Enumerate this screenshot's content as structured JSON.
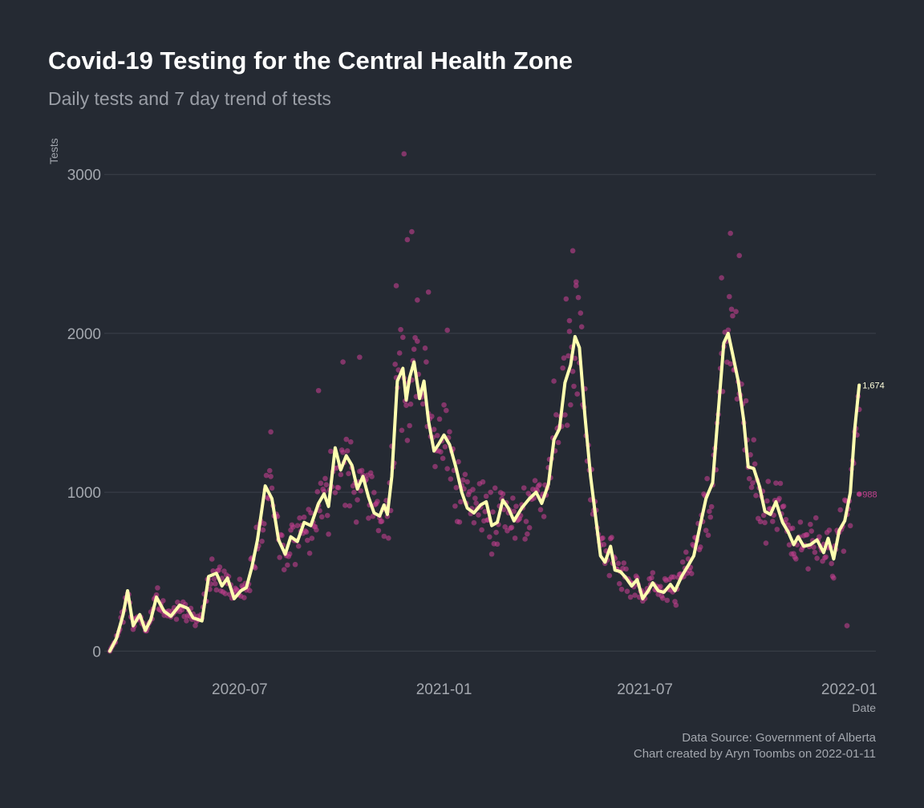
{
  "chart_data": {
    "type": "scatter",
    "title": "Covid-19 Testing for the Central Health Zone",
    "subtitle": "Daily tests and 7 day trend of tests",
    "xlabel": "Date",
    "ylabel": "Tests",
    "x_ticks": [
      "2020-07",
      "2021-01",
      "2021-07",
      "2022-01"
    ],
    "y_ticks": [
      "0",
      "1000",
      "2000",
      "3000"
    ],
    "xlim": [
      "2020-03-01",
      "2022-01-25"
    ],
    "ylim": [
      -150,
      3150
    ],
    "grid": "horizontal",
    "x_range": [
      "2020-03-06",
      "2022-01-10"
    ],
    "colors": {
      "points": "#c2408e",
      "trend": "#ffffb0",
      "background": "#252a33",
      "grid": "#3c414b"
    },
    "series": [
      {
        "kind": "trend_line",
        "points": [
          [
            "2020-03-06",
            0
          ],
          [
            "2020-03-12",
            80
          ],
          [
            "2020-03-18",
            230
          ],
          [
            "2020-03-22",
            380
          ],
          [
            "2020-03-27",
            160
          ],
          [
            "2020-04-02",
            230
          ],
          [
            "2020-04-07",
            130
          ],
          [
            "2020-04-12",
            200
          ],
          [
            "2020-04-17",
            340
          ],
          [
            "2020-04-24",
            250
          ],
          [
            "2020-04-30",
            220
          ],
          [
            "2020-05-08",
            290
          ],
          [
            "2020-05-15",
            270
          ],
          [
            "2020-05-20",
            210
          ],
          [
            "2020-05-28",
            190
          ],
          [
            "2020-06-03",
            470
          ],
          [
            "2020-06-10",
            490
          ],
          [
            "2020-06-15",
            410
          ],
          [
            "2020-06-20",
            460
          ],
          [
            "2020-06-26",
            330
          ],
          [
            "2020-07-02",
            380
          ],
          [
            "2020-07-07",
            400
          ],
          [
            "2020-07-12",
            530
          ],
          [
            "2020-07-17",
            700
          ],
          [
            "2020-07-24",
            1040
          ],
          [
            "2020-07-30",
            960
          ],
          [
            "2020-08-05",
            700
          ],
          [
            "2020-08-11",
            610
          ],
          [
            "2020-08-16",
            720
          ],
          [
            "2020-08-22",
            690
          ],
          [
            "2020-08-28",
            810
          ],
          [
            "2020-09-03",
            790
          ],
          [
            "2020-09-10",
            930
          ],
          [
            "2020-09-15",
            990
          ],
          [
            "2020-09-19",
            910
          ],
          [
            "2020-09-25",
            1280
          ],
          [
            "2020-09-30",
            1140
          ],
          [
            "2020-10-05",
            1230
          ],
          [
            "2020-10-10",
            1170
          ],
          [
            "2020-10-15",
            1020
          ],
          [
            "2020-10-20",
            1100
          ],
          [
            "2020-10-25",
            970
          ],
          [
            "2020-10-30",
            870
          ],
          [
            "2020-11-04",
            850
          ],
          [
            "2020-11-08",
            920
          ],
          [
            "2020-11-11",
            860
          ],
          [
            "2020-11-15",
            1100
          ],
          [
            "2020-11-20",
            1700
          ],
          [
            "2020-11-25",
            1780
          ],
          [
            "2020-11-28",
            1580
          ],
          [
            "2020-12-01",
            1720
          ],
          [
            "2020-12-05",
            1820
          ],
          [
            "2020-12-10",
            1590
          ],
          [
            "2020-12-14",
            1700
          ],
          [
            "2020-12-18",
            1450
          ],
          [
            "2020-12-23",
            1260
          ],
          [
            "2020-12-27",
            1300
          ],
          [
            "2021-01-01",
            1360
          ],
          [
            "2021-01-06",
            1300
          ],
          [
            "2021-01-12",
            1150
          ],
          [
            "2021-01-17",
            1000
          ],
          [
            "2021-01-22",
            900
          ],
          [
            "2021-01-28",
            870
          ],
          [
            "2021-02-03",
            920
          ],
          [
            "2021-02-08",
            940
          ],
          [
            "2021-02-13",
            790
          ],
          [
            "2021-02-18",
            810
          ],
          [
            "2021-02-23",
            950
          ],
          [
            "2021-02-28",
            900
          ],
          [
            "2021-03-05",
            820
          ],
          [
            "2021-03-12",
            900
          ],
          [
            "2021-03-19",
            960
          ],
          [
            "2021-03-25",
            1000
          ],
          [
            "2021-03-30",
            930
          ],
          [
            "2021-04-05",
            1050
          ],
          [
            "2021-04-10",
            1330
          ],
          [
            "2021-04-15",
            1400
          ],
          [
            "2021-04-20",
            1690
          ],
          [
            "2021-04-25",
            1800
          ],
          [
            "2021-04-29",
            1980
          ],
          [
            "2021-05-03",
            1910
          ],
          [
            "2021-05-08",
            1480
          ],
          [
            "2021-05-13",
            1100
          ],
          [
            "2021-05-18",
            820
          ],
          [
            "2021-05-22",
            600
          ],
          [
            "2021-05-26",
            560
          ],
          [
            "2021-05-31",
            660
          ],
          [
            "2021-06-04",
            510
          ],
          [
            "2021-06-09",
            500
          ],
          [
            "2021-06-14",
            460
          ],
          [
            "2021-06-19",
            410
          ],
          [
            "2021-06-24",
            450
          ],
          [
            "2021-06-29",
            330
          ],
          [
            "2021-07-04",
            380
          ],
          [
            "2021-07-08",
            430
          ],
          [
            "2021-07-13",
            380
          ],
          [
            "2021-07-18",
            370
          ],
          [
            "2021-07-24",
            420
          ],
          [
            "2021-07-28",
            380
          ],
          [
            "2021-08-03",
            470
          ],
          [
            "2021-08-09",
            540
          ],
          [
            "2021-08-14",
            600
          ],
          [
            "2021-08-20",
            800
          ],
          [
            "2021-08-25",
            960
          ],
          [
            "2021-08-31",
            1060
          ],
          [
            "2021-09-05",
            1500
          ],
          [
            "2021-09-10",
            1940
          ],
          [
            "2021-09-14",
            2000
          ],
          [
            "2021-09-18",
            1870
          ],
          [
            "2021-09-23",
            1700
          ],
          [
            "2021-09-28",
            1450
          ],
          [
            "2021-10-02",
            1160
          ],
          [
            "2021-10-07",
            1150
          ],
          [
            "2021-10-12",
            1040
          ],
          [
            "2021-10-17",
            880
          ],
          [
            "2021-10-22",
            860
          ],
          [
            "2021-10-27",
            940
          ],
          [
            "2021-11-02",
            810
          ],
          [
            "2021-11-07",
            750
          ],
          [
            "2021-11-12",
            670
          ],
          [
            "2021-11-16",
            720
          ],
          [
            "2021-11-21",
            660
          ],
          [
            "2021-11-27",
            670
          ],
          [
            "2021-12-03",
            700
          ],
          [
            "2021-12-09",
            620
          ],
          [
            "2021-12-13",
            710
          ],
          [
            "2021-12-18",
            580
          ],
          [
            "2021-12-23",
            760
          ],
          [
            "2021-12-28",
            820
          ],
          [
            "2022-01-02",
            1000
          ],
          [
            "2022-01-06",
            1400
          ],
          [
            "2022-01-10",
            1674
          ]
        ]
      }
    ],
    "extra_points": [
      [
        "2020-11-26",
        3130
      ],
      [
        "2020-11-29",
        2590
      ],
      [
        "2020-12-03",
        2640
      ],
      [
        "2021-04-27",
        2520
      ],
      [
        "2021-04-30",
        2300
      ],
      [
        "2021-09-16",
        2630
      ],
      [
        "2021-09-24",
        2490
      ],
      [
        "2021-09-08",
        2350
      ],
      [
        "2020-12-18",
        2260
      ],
      [
        "2020-12-08",
        2210
      ],
      [
        "2021-12-30",
        160
      ],
      [
        "2020-11-19",
        2300
      ],
      [
        "2021-01-04",
        2020
      ],
      [
        "2020-10-17",
        1850
      ],
      [
        "2020-10-02",
        1820
      ],
      [
        "2020-07-29",
        1380
      ],
      [
        "2020-09-10",
        1640
      ],
      [
        "2021-04-24",
        2080
      ]
    ],
    "end_label": "1,674",
    "last_point_label": "988",
    "caption": [
      "Data Source: Government of Alberta",
      "Chart created by Aryn Toombs on 2022-01-11"
    ]
  }
}
